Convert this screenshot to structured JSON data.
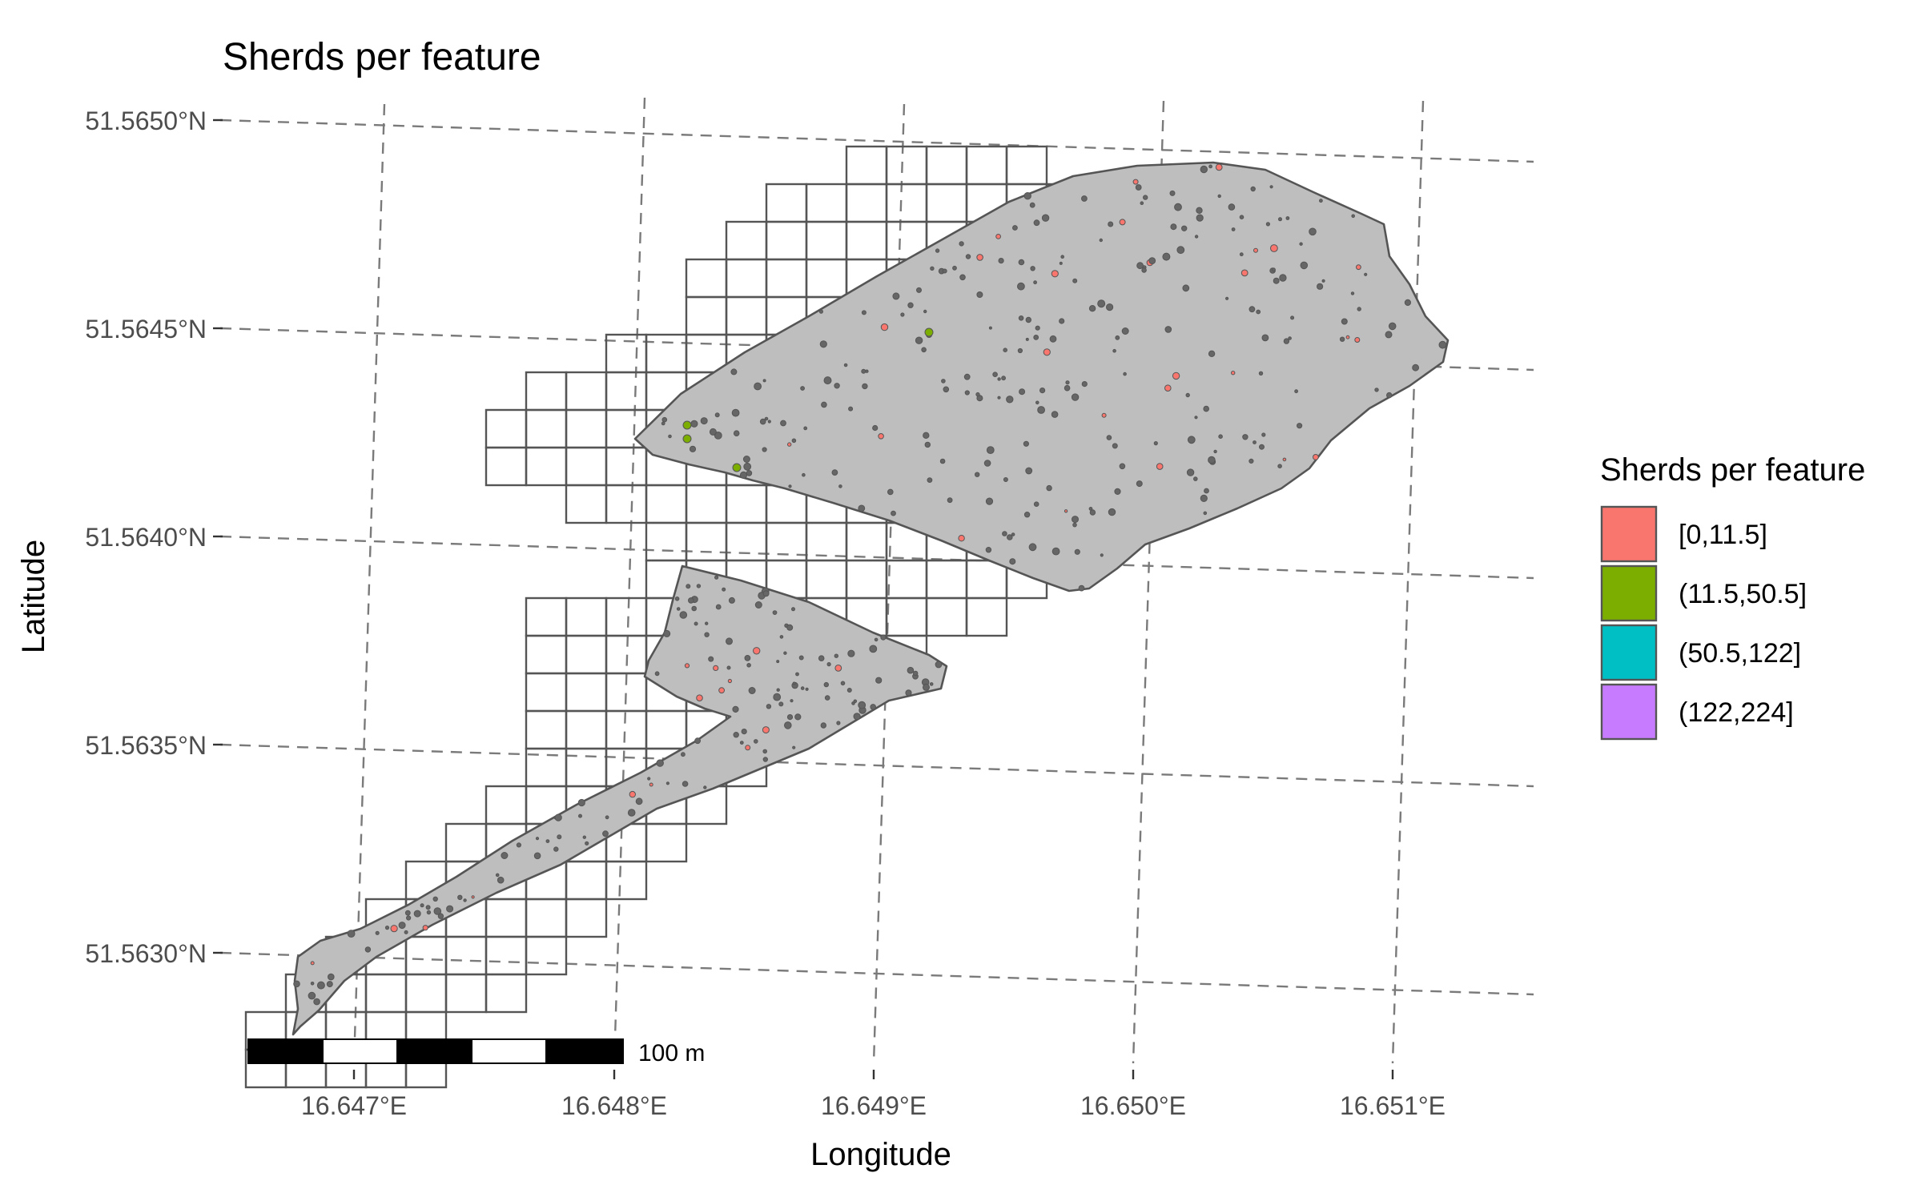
{
  "title": "Sherds per feature",
  "axes": {
    "xlabel": "Longitude",
    "ylabel": "Latitude",
    "xticks": [
      "16.647°E",
      "16.648°E",
      "16.649°E",
      "16.650°E",
      "16.651°E"
    ],
    "yticks": [
      "51.5650°N",
      "51.5645°N",
      "51.5640°N",
      "51.5635°N",
      "51.5630°N"
    ]
  },
  "legend": {
    "title": "Sherds per feature",
    "position": "right",
    "items": [
      {
        "label": "[0,11.5]",
        "color": "#F8766D"
      },
      {
        "label": "(11.5,50.5]",
        "color": "#7CAE00"
      },
      {
        "label": "(50.5,122]",
        "color": "#00BFC4"
      },
      {
        "label": "(122,224]",
        "color": "#C77CFF"
      }
    ]
  },
  "scale_bar": {
    "label": "100 m"
  },
  "colors": {
    "site_fill": "#bebebe",
    "outline": "#555555",
    "graticule": "#7a7a7a",
    "feature_dot": "#666666"
  },
  "chart_data": {
    "type": "map",
    "grid": "dashed graticule",
    "legend_position": "right",
    "xlim": [
      16.6466,
      16.6516
    ],
    "ylim": [
      51.5628,
      51.5651
    ],
    "sherd_classes": [
      "[0,11.5]",
      "(11.5,50.5]",
      "(50.5,122]",
      "(122,224]"
    ]
  }
}
